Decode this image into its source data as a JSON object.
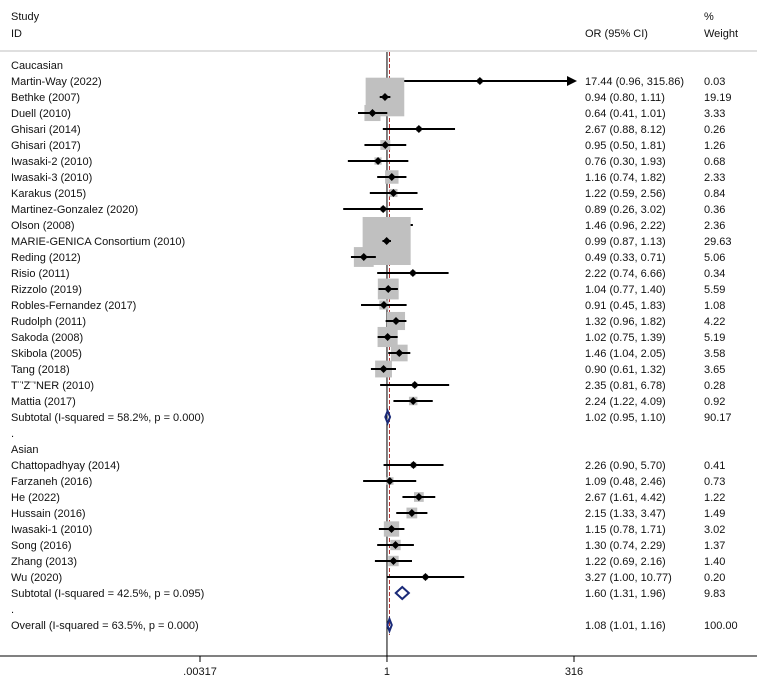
{
  "header": {
    "study_line1": "Study",
    "study_line2": "ID",
    "or_label": "OR (95% CI)",
    "pct_line1": "%",
    "pct_line2": "Weight"
  },
  "colors": {
    "box": "#c0c0c0",
    "line": "#000000",
    "diamond": "#1a2a78",
    "ref_red": "#b03030",
    "ref_black": "#000000",
    "rule": "#bfbfbf"
  },
  "chart_data": {
    "type": "forest",
    "scale": "log",
    "xlim": [
      0.00317,
      316
    ],
    "reference_or": 1,
    "overall_ref_or": 1.08,
    "x_ticks": [
      {
        "value": 0.00317,
        "label": ".00317"
      },
      {
        "value": 1,
        "label": "1"
      },
      {
        "value": 316,
        "label": "316"
      }
    ],
    "rows": [
      {
        "kind": "group",
        "label": "Caucasian"
      },
      {
        "kind": "study",
        "label": "Martin-Way (2022)",
        "or": 17.44,
        "lo": 0.96,
        "hi": 315.86,
        "ci_text": "17.44 (0.96, 315.86)",
        "weight": 0.03,
        "weight_text": "0.03",
        "arrow": true
      },
      {
        "kind": "study",
        "label": "Bethke (2007)",
        "or": 0.94,
        "lo": 0.8,
        "hi": 1.11,
        "ci_text": "0.94 (0.80, 1.11)",
        "weight": 19.19,
        "weight_text": "19.19"
      },
      {
        "kind": "study",
        "label": "Duell (2010)",
        "or": 0.64,
        "lo": 0.41,
        "hi": 1.01,
        "ci_text": "0.64 (0.41, 1.01)",
        "weight": 3.33,
        "weight_text": "3.33"
      },
      {
        "kind": "study",
        "label": "Ghisari (2014)",
        "or": 2.67,
        "lo": 0.88,
        "hi": 8.12,
        "ci_text": "2.67 (0.88, 8.12)",
        "weight": 0.26,
        "weight_text": "0.26"
      },
      {
        "kind": "study",
        "label": "Ghisari (2017)",
        "or": 0.95,
        "lo": 0.5,
        "hi": 1.81,
        "ci_text": "0.95 (0.50, 1.81)",
        "weight": 1.26,
        "weight_text": "1.26"
      },
      {
        "kind": "study",
        "label": "Iwasaki-2 (2010)",
        "or": 0.76,
        "lo": 0.3,
        "hi": 1.93,
        "ci_text": "0.76 (0.30, 1.93)",
        "weight": 0.68,
        "weight_text": "0.68"
      },
      {
        "kind": "study",
        "label": "Iwasaki-3 (2010)",
        "or": 1.16,
        "lo": 0.74,
        "hi": 1.82,
        "ci_text": "1.16 (0.74, 1.82)",
        "weight": 2.33,
        "weight_text": "2.33"
      },
      {
        "kind": "study",
        "label": "Karakus (2015)",
        "or": 1.22,
        "lo": 0.59,
        "hi": 2.56,
        "ci_text": "1.22 (0.59, 2.56)",
        "weight": 0.84,
        "weight_text": "0.84"
      },
      {
        "kind": "study",
        "label": "Martinez-Gonzalez (2020)",
        "or": 0.89,
        "lo": 0.26,
        "hi": 3.02,
        "ci_text": "0.89 (0.26, 3.02)",
        "weight": 0.36,
        "weight_text": "0.36"
      },
      {
        "kind": "study",
        "label": "Olson (2008)",
        "or": 1.46,
        "lo": 0.96,
        "hi": 2.22,
        "ci_text": "1.46 (0.96, 2.22)",
        "weight": 2.36,
        "weight_text": "2.36"
      },
      {
        "kind": "study",
        "label": "MARIE-GENICA Consortium (2010)",
        "or": 0.99,
        "lo": 0.87,
        "hi": 1.13,
        "ci_text": "0.99 (0.87, 1.13)",
        "weight": 29.63,
        "weight_text": "29.63"
      },
      {
        "kind": "study",
        "label": "Reding (2012)",
        "or": 0.49,
        "lo": 0.33,
        "hi": 0.71,
        "ci_text": "0.49 (0.33, 0.71)",
        "weight": 5.06,
        "weight_text": "5.06"
      },
      {
        "kind": "study",
        "label": "Risio (2011)",
        "or": 2.22,
        "lo": 0.74,
        "hi": 6.66,
        "ci_text": "2.22 (0.74, 6.66)",
        "weight": 0.34,
        "weight_text": "0.34"
      },
      {
        "kind": "study",
        "label": "Rizzolo (2019)",
        "or": 1.04,
        "lo": 0.77,
        "hi": 1.4,
        "ci_text": "1.04 (0.77, 1.40)",
        "weight": 5.59,
        "weight_text": "5.59"
      },
      {
        "kind": "study",
        "label": "Robles-Fernandez (2017)",
        "or": 0.91,
        "lo": 0.45,
        "hi": 1.83,
        "ci_text": "0.91 (0.45, 1.83)",
        "weight": 1.08,
        "weight_text": "1.08"
      },
      {
        "kind": "study",
        "label": "Rudolph (2011)",
        "or": 1.32,
        "lo": 0.96,
        "hi": 1.82,
        "ci_text": "1.32 (0.96, 1.82)",
        "weight": 4.22,
        "weight_text": "4.22"
      },
      {
        "kind": "study",
        "label": "Sakoda (2008)",
        "or": 1.02,
        "lo": 0.75,
        "hi": 1.39,
        "ci_text": "1.02 (0.75, 1.39)",
        "weight": 5.19,
        "weight_text": "5.19"
      },
      {
        "kind": "study",
        "label": "Skibola (2005)",
        "or": 1.46,
        "lo": 1.04,
        "hi": 2.05,
        "ci_text": "1.46 (1.04, 2.05)",
        "weight": 3.58,
        "weight_text": "3.58"
      },
      {
        "kind": "study",
        "label": "Tang (2018)",
        "or": 0.9,
        "lo": 0.61,
        "hi": 1.32,
        "ci_text": "0.90 (0.61, 1.32)",
        "weight": 3.65,
        "weight_text": "3.65"
      },
      {
        "kind": "study",
        "label": "T¨'Z¨'NER (2010)",
        "or": 2.35,
        "lo": 0.81,
        "hi": 6.78,
        "ci_text": "2.35 (0.81, 6.78)",
        "weight": 0.28,
        "weight_text": "0.28"
      },
      {
        "kind": "study",
        "label": "Mattia (2017)",
        "or": 2.24,
        "lo": 1.22,
        "hi": 4.09,
        "ci_text": "2.24 (1.22, 4.09)",
        "weight": 0.92,
        "weight_text": "0.92"
      },
      {
        "kind": "subtotal",
        "label": "Subtotal  (I-squared = 58.2%, p = 0.000)",
        "or": 1.02,
        "lo": 0.95,
        "hi": 1.1,
        "ci_text": "1.02 (0.95, 1.10)",
        "weight": 90.17,
        "weight_text": "90.17"
      },
      {
        "kind": "spacer",
        "label": "."
      },
      {
        "kind": "group",
        "label": "Asian"
      },
      {
        "kind": "study",
        "label": "Chattopadhyay (2014)",
        "or": 2.26,
        "lo": 0.9,
        "hi": 5.7,
        "ci_text": "2.26 (0.90, 5.70)",
        "weight": 0.41,
        "weight_text": "0.41"
      },
      {
        "kind": "study",
        "label": "Farzaneh (2016)",
        "or": 1.09,
        "lo": 0.48,
        "hi": 2.46,
        "ci_text": "1.09 (0.48, 2.46)",
        "weight": 0.73,
        "weight_text": "0.73"
      },
      {
        "kind": "study",
        "label": "He (2022)",
        "or": 2.67,
        "lo": 1.61,
        "hi": 4.42,
        "ci_text": "2.67 (1.61, 4.42)",
        "weight": 1.22,
        "weight_text": "1.22"
      },
      {
        "kind": "study",
        "label": "Hussain (2016)",
        "or": 2.15,
        "lo": 1.33,
        "hi": 3.47,
        "ci_text": "2.15 (1.33, 3.47)",
        "weight": 1.49,
        "weight_text": "1.49"
      },
      {
        "kind": "study",
        "label": "Iwasaki-1 (2010)",
        "or": 1.15,
        "lo": 0.78,
        "hi": 1.71,
        "ci_text": "1.15 (0.78, 1.71)",
        "weight": 3.02,
        "weight_text": "3.02"
      },
      {
        "kind": "study",
        "label": "Song (2016)",
        "or": 1.3,
        "lo": 0.74,
        "hi": 2.29,
        "ci_text": "1.30 (0.74, 2.29)",
        "weight": 1.37,
        "weight_text": "1.37"
      },
      {
        "kind": "study",
        "label": "Zhang (2013)",
        "or": 1.22,
        "lo": 0.69,
        "hi": 2.16,
        "ci_text": "1.22 (0.69, 2.16)",
        "weight": 1.4,
        "weight_text": "1.40"
      },
      {
        "kind": "study",
        "label": "Wu (2020)",
        "or": 3.27,
        "lo": 1.0,
        "hi": 10.77,
        "ci_text": "3.27 (1.00, 10.77)",
        "weight": 0.2,
        "weight_text": "0.20"
      },
      {
        "kind": "subtotal",
        "label": "Subtotal  (I-squared = 42.5%, p = 0.095)",
        "or": 1.6,
        "lo": 1.31,
        "hi": 1.96,
        "ci_text": "1.60 (1.31, 1.96)",
        "weight": 9.83,
        "weight_text": "9.83"
      },
      {
        "kind": "spacer",
        "label": "."
      },
      {
        "kind": "overall",
        "label": "Overall  (I-squared = 63.5%, p = 0.000)",
        "or": 1.08,
        "lo": 1.01,
        "hi": 1.16,
        "ci_text": "1.08 (1.01, 1.16)",
        "weight": 100.0,
        "weight_text": "100.00"
      }
    ]
  }
}
